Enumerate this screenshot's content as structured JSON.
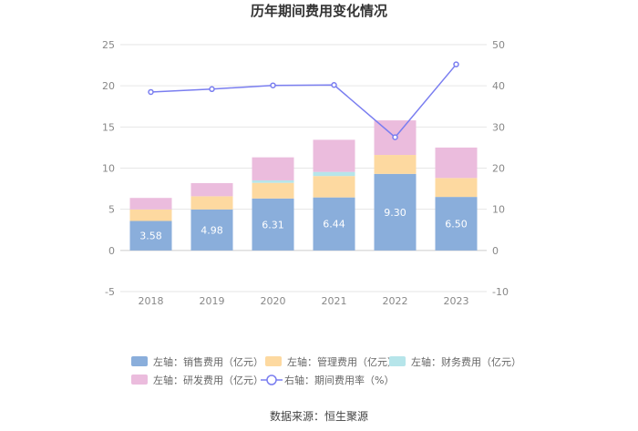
{
  "chart_data": {
    "type": "bar",
    "title": "历年期间费用变化情况",
    "categories": [
      "2018",
      "2019",
      "2020",
      "2021",
      "2022",
      "2023"
    ],
    "left_axis": {
      "ylim": [
        -5,
        25
      ],
      "ticks": [
        "25",
        "20",
        "15",
        "10",
        "5",
        "0",
        "-5"
      ]
    },
    "right_axis": {
      "ylim": [
        -10,
        50
      ],
      "ticks": [
        "50",
        "40",
        "30",
        "20",
        "10",
        "0",
        "-10"
      ]
    },
    "series": [
      {
        "name": "左轴：销售费用（亿元）",
        "type": "bar",
        "stack": "total",
        "color": "#8aaedb",
        "values": [
          3.58,
          4.98,
          6.31,
          6.44,
          9.3,
          6.5
        ],
        "data_labels": [
          "3.58",
          "4.98",
          "6.31",
          "6.44",
          "9.30",
          "6.50"
        ]
      },
      {
        "name": "左轴：管理费用（亿元）",
        "type": "bar",
        "stack": "total",
        "color": "#fdd9a0",
        "values": [
          1.4,
          1.6,
          1.9,
          2.6,
          2.3,
          2.3
        ]
      },
      {
        "name": "左轴：财务费用（亿元）",
        "type": "bar",
        "stack": "total",
        "color": "#b6e5ea",
        "values": [
          0.0,
          0.0,
          0.3,
          0.5,
          0.0,
          0.0
        ]
      },
      {
        "name": "左轴：研发费用（亿元）",
        "type": "bar",
        "stack": "total",
        "color": "#ebbcdd",
        "values": [
          1.4,
          1.6,
          2.8,
          3.9,
          4.2,
          3.7
        ]
      },
      {
        "name": "右轴：期间费用率（%）",
        "type": "line",
        "axis": "right",
        "color": "#7a7ef0",
        "values": [
          38.5,
          39.2,
          40.1,
          40.2,
          27.5,
          45.2
        ]
      }
    ],
    "legend_position": "bottom",
    "grid": true
  },
  "source": "数据来源：恒生聚源"
}
